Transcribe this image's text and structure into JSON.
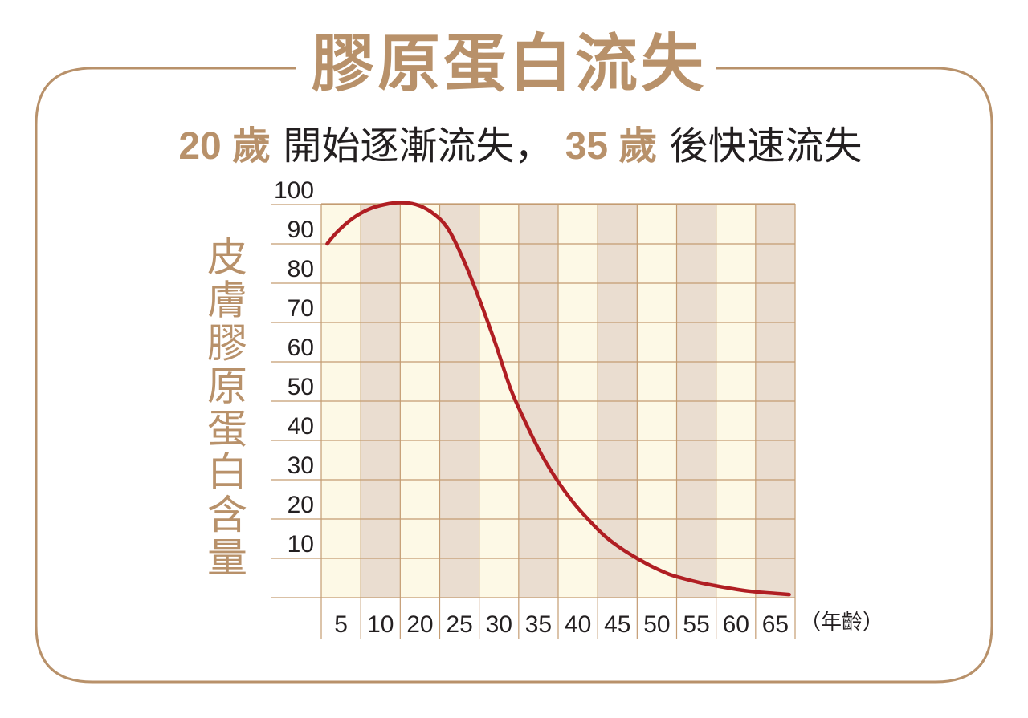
{
  "title": "膠原蛋白流失",
  "subtitle": {
    "part1": "20 歲",
    "part2": "開始逐漸流失，",
    "part3": "35 歲",
    "part4": "後快速流失"
  },
  "colors": {
    "accent": "#b8916a",
    "curve": "#b01e23",
    "band_light": "#fdf9e6",
    "band_dark": "#eaddd0",
    "grid": "#c49c72",
    "text": "#231f20"
  },
  "chart_data": {
    "type": "line",
    "ylabel": "皮膚膠原蛋白含量",
    "x_unit_label": "（年齡）",
    "x_categories": [
      "5",
      "10",
      "20",
      "25",
      "30",
      "35",
      "40",
      "45",
      "50",
      "55",
      "60",
      "65"
    ],
    "y_ticks": [
      "100",
      "90",
      "80",
      "70",
      "60",
      "50",
      "40",
      "30",
      "20",
      "10"
    ],
    "ylim": [
      0,
      100
    ],
    "grid": true,
    "series": [
      {
        "points": [
          [
            0.15,
            90
          ],
          [
            0.4,
            93
          ],
          [
            0.8,
            96.5
          ],
          [
            1.2,
            98.8
          ],
          [
            1.6,
            100
          ],
          [
            2.0,
            100.5
          ],
          [
            2.4,
            100
          ],
          [
            2.8,
            98
          ],
          [
            3.2,
            94
          ],
          [
            3.6,
            86
          ],
          [
            4.0,
            76
          ],
          [
            4.4,
            65
          ],
          [
            4.8,
            53
          ],
          [
            5.2,
            44
          ],
          [
            5.6,
            36
          ],
          [
            6.0,
            29.5
          ],
          [
            6.4,
            24
          ],
          [
            6.8,
            19.5
          ],
          [
            7.2,
            15.5
          ],
          [
            7.6,
            12.5
          ],
          [
            8.0,
            10
          ],
          [
            8.4,
            7.8
          ],
          [
            8.8,
            6
          ],
          [
            9.2,
            4.8
          ],
          [
            9.6,
            3.8
          ],
          [
            10.0,
            3
          ],
          [
            10.4,
            2.3
          ],
          [
            10.8,
            1.7
          ],
          [
            11.2,
            1.3
          ],
          [
            11.6,
            1
          ],
          [
            11.85,
            0.8
          ]
        ]
      }
    ]
  }
}
